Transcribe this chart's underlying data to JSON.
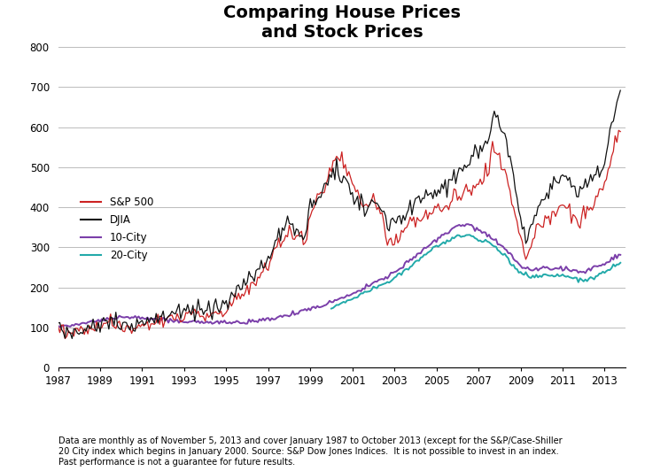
{
  "title": "Comparing House Prices\nand Stock Prices",
  "title_fontsize": 14,
  "footnote": "Data are monthly as of November 5, 2013 and cover January 1987 to October 2013 (except for the S&P/Case-Shiller\n20 City index which begins in January 2000. Source: S&P Dow Jones Indices.  It is not possible to invest in an index.\nPast performance is not a guarantee for future results.",
  "xlim": [
    1987,
    2014.0
  ],
  "ylim": [
    0,
    800
  ],
  "yticks": [
    0,
    100,
    200,
    300,
    400,
    500,
    600,
    700,
    800
  ],
  "xticks": [
    1987,
    1989,
    1991,
    1993,
    1995,
    1997,
    1999,
    2001,
    2003,
    2005,
    2007,
    2009,
    2011,
    2013
  ],
  "sp500_color": "#CC2222",
  "djia_color": "#111111",
  "city10_color": "#7B3FAA",
  "city20_color": "#22AAAA",
  "legend_labels": [
    "S&P 500",
    "DJIA",
    "10-City",
    "20-City"
  ],
  "background_color": "#FFFFFF",
  "grid_color": "#BBBBBB"
}
